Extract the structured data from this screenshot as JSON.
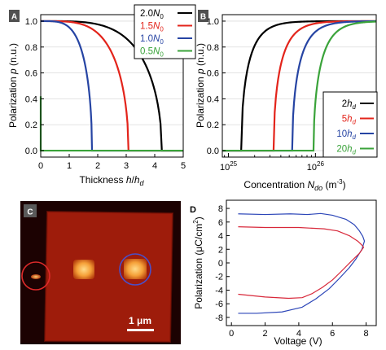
{
  "panels": {
    "a": {
      "letter": "A"
    },
    "b": {
      "letter": "B"
    },
    "c": {
      "letter": "C",
      "scale_bar": "1 μm"
    },
    "d": {
      "letter": "D"
    }
  },
  "colors": {
    "black": "#000000",
    "red": "#e3241b",
    "blue": "#2644a3",
    "green": "#3aa33a",
    "rose": "#d8283a",
    "navy": "#2c46b8"
  },
  "chart_data": [
    {
      "id": "A",
      "type": "line",
      "xlabel_main": "Thickness ",
      "xlabel_var": "h",
      "xlabel_sep": "/",
      "xlabel_var2": "h",
      "xlabel_sub": "d",
      "ylabel_main": "Polarization ",
      "ylabel_var": "p",
      "ylabel_unit": " (n.u.)",
      "xlim": [
        0,
        5
      ],
      "ylim": [
        -0.05,
        1.05
      ],
      "xticks": [
        "0",
        "1",
        "2",
        "3",
        "4",
        "5"
      ],
      "yticks": [
        "0.0",
        "0.2",
        "0.4",
        "0.6",
        "0.8",
        "1.0"
      ],
      "legend_position": "top-right",
      "series": [
        {
          "name_num": "2.0",
          "name_var": "N",
          "name_sub": "0",
          "color": "#000000",
          "critical_thickness": 4.25
        },
        {
          "name_num": "1.5",
          "name_var": "N",
          "name_sub": "0",
          "color": "#e3241b",
          "critical_thickness": 3.08
        },
        {
          "name_num": "1.0",
          "name_var": "N",
          "name_sub": "0",
          "color": "#2644a3",
          "critical_thickness": 1.8
        },
        {
          "name_num": "0.5",
          "name_var": "N",
          "name_sub": "0",
          "color": "#3aa33a",
          "critical_thickness": 0.12,
          "initial_value": 0.42
        }
      ]
    },
    {
      "id": "B",
      "type": "line",
      "xscale": "log",
      "xlabel_main": "Concentration ",
      "xlabel_var": "N",
      "xlabel_sub": "do",
      "xlabel_unit": " (m",
      "xlabel_exp": "-3",
      "xlabel_close": ")",
      "ylabel_main": "Polarization ",
      "ylabel_var": "p",
      "ylabel_unit": " (n.u.)",
      "xlim": [
        8.5e+24,
        5e+26
      ],
      "ylim": [
        -0.05,
        1.05
      ],
      "xticks": [
        {
          "value": 1e+25,
          "base": "10",
          "exp": "25"
        },
        {
          "value": 1e+26,
          "base": "10",
          "exp": "26"
        }
      ],
      "yticks": [
        "0.0",
        "0.2",
        "0.4",
        "0.6",
        "0.8",
        "1.0"
      ],
      "legend_position": "bottom-right",
      "series": [
        {
          "name_num": "2",
          "name_var": "h",
          "name_sub": "d",
          "color": "#000000",
          "onset_concentration": 1.4e+25
        },
        {
          "name_num": "5",
          "name_var": "h",
          "name_sub": "d",
          "color": "#e3241b",
          "onset_concentration": 3.3e+25
        },
        {
          "name_num": "10",
          "name_var": "h",
          "name_sub": "d",
          "color": "#2644a3",
          "onset_concentration": 5.4e+25
        },
        {
          "name_num": "20",
          "name_var": "h",
          "name_sub": "d",
          "color": "#3aa33a",
          "onset_concentration": 9.5e+25
        }
      ]
    },
    {
      "id": "D",
      "type": "line",
      "xlabel": "Voltage (V)",
      "ylabel_main": "Polarization (μC/cm",
      "ylabel_exp": "2",
      "ylabel_close": ")",
      "xlim": [
        -0.3,
        8.6
      ],
      "ylim": [
        -9.2,
        9.2
      ],
      "xticks": [
        0,
        2,
        4,
        6,
        8
      ],
      "yticks": [
        -8,
        -6,
        -4,
        -2,
        0,
        2,
        4,
        6,
        8
      ],
      "series": [
        {
          "color": "#2c46b8",
          "x": [
            0.4,
            2,
            3.5,
            4.5,
            5.3,
            6.0,
            6.8,
            7.3,
            7.6,
            7.8,
            7.9,
            7.75,
            7.4,
            7.0,
            6.4,
            5.8,
            5.0,
            4.2,
            3.0,
            1.5,
            0.4
          ],
          "y": [
            7.2,
            7.1,
            7.2,
            7.1,
            7.25,
            7.0,
            6.4,
            5.6,
            4.7,
            3.9,
            3.2,
            2.0,
            0.6,
            -0.7,
            -2.3,
            -3.8,
            -5.3,
            -6.5,
            -7.2,
            -7.4,
            -7.4
          ]
        },
        {
          "color": "#d8283a",
          "x": [
            0.4,
            2,
            4,
            5.5,
            6.3,
            7.0,
            7.5,
            7.75,
            7.85,
            7.6,
            7.1,
            6.5,
            6.0,
            5.4,
            4.8,
            4.2,
            3.4,
            2.0,
            0.4
          ],
          "y": [
            5.3,
            5.2,
            5.2,
            5.0,
            4.7,
            4.0,
            3.2,
            2.6,
            2.3,
            1.4,
            0.2,
            -1.3,
            -2.5,
            -3.6,
            -4.5,
            -5.1,
            -5.2,
            -5.0,
            -4.6
          ]
        }
      ]
    }
  ]
}
